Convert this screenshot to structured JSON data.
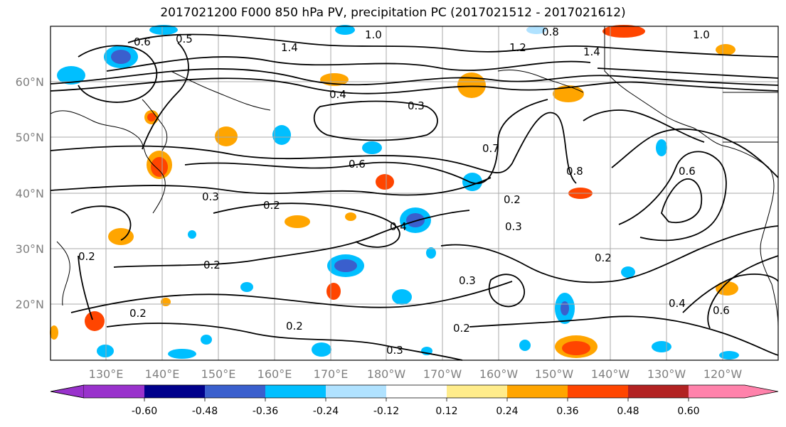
{
  "title": "2017021200 F000 850 hPa PV, precipitation PC (2017021512 - 2017021612)",
  "lat_labels": [
    "60°N",
    "50°N",
    "40°N",
    "30°N",
    "20°N"
  ],
  "lon_labels": [
    "130°E",
    "140°E",
    "150°E",
    "160°E",
    "170°E",
    "180°W",
    "170°W",
    "160°W",
    "150°W",
    "140°W",
    "130°W",
    "120°W"
  ],
  "colorbar": {
    "colors": [
      "#9932cc",
      "#00008b",
      "#3a5fcd",
      "#00bfff",
      "#b0e2ff",
      "#ffffff",
      "#ffec8b",
      "#ffa500",
      "#ff4500",
      "#b22222",
      "#ff82ab"
    ],
    "tick_labels": [
      "-0.60",
      "-0.48",
      "-0.36",
      "-0.24",
      "-0.12",
      "0.12",
      "0.24",
      "0.36",
      "0.48",
      "0.60"
    ]
  },
  "contour_labels": [
    "0.5",
    "0.6",
    "1.0",
    "0.8",
    "1.0",
    "1.4",
    "1.2",
    "1.4",
    "0.4",
    "0.3",
    "0.7",
    "0.6",
    "0.3",
    "0.2",
    "0.4",
    "0.8",
    "0.6",
    "0.2",
    "0.3",
    "0.2",
    "0.2",
    "0.2",
    "0.2",
    "0.3",
    "0.2",
    "0.4",
    "0.6",
    "0.2",
    "0.3"
  ]
}
